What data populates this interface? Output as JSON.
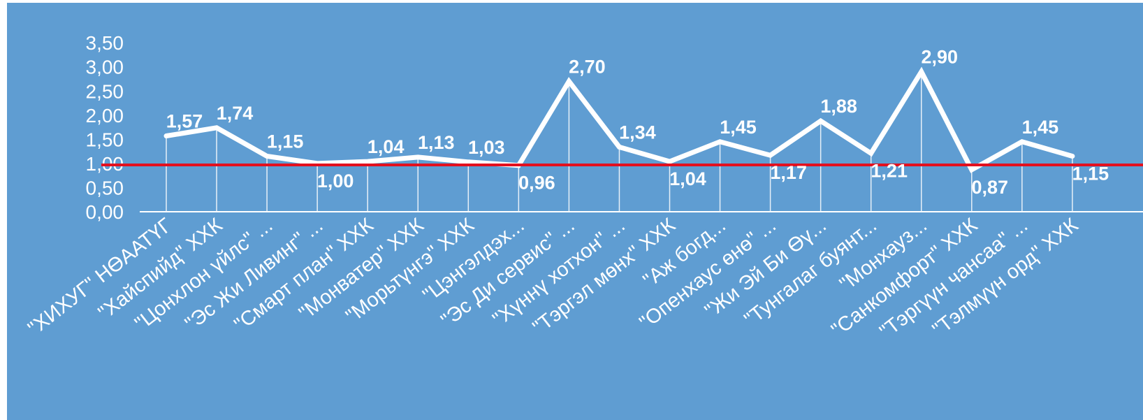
{
  "colors": {
    "plot_background": "#5f9dd2",
    "series_line": "#ffffff",
    "reference_line": "#e3101e",
    "axis_line": "#ffffff",
    "text": "#ffffff"
  },
  "chart_data": {
    "type": "line",
    "title": "",
    "xlabel": "",
    "ylabel": "",
    "ylim": [
      0,
      3.5
    ],
    "y_ticks": [
      "0,00",
      "0,50",
      "1,00",
      "1,50",
      "2,00",
      "2,50",
      "3,00",
      "3,50"
    ],
    "grid": false,
    "legend": "none",
    "reference_line": 0.97,
    "categories": [
      "\"ХИХУГ\" НӨААТҮГ",
      "\"Хайспийд\" ХХК",
      "\"Цонхлон үйлс\" ...",
      "\"Эс Жи Ливинг\" ...",
      "\"Смарт план\" ХХК",
      "\"Монватер\" ХХК",
      "\"Морьтүнгэ\" ХХК",
      "\"Цэнгэлдэх...",
      "\"Эс Ди сервис\" ...",
      "\"Хүннү хотхон\" ...",
      "\"Тэргэл мөнх\" ХХК",
      "\"Аж богд...",
      "\"Опенхаус өнө\" ...",
      "\"Жи Эй Би Өү...",
      "\"Тунгалаг буянт...",
      "\"Монхауз...",
      "\"Санкомфорт\" ХХК",
      "\"Тэргүүн чансаа\" ...",
      "\"Тэлмүүн орд\" ХХК"
    ],
    "series": [
      {
        "values": [
          1.57,
          1.74,
          1.15,
          1.0,
          1.04,
          1.13,
          1.03,
          0.96,
          2.7,
          1.34,
          1.04,
          1.45,
          1.17,
          1.88,
          1.21,
          2.9,
          0.87,
          1.45,
          1.15
        ],
        "labels": [
          "1,57",
          "1,74",
          "1,15",
          "1,00",
          "1,04",
          "1,13",
          "1,03",
          "0,96",
          "2,70",
          "1,34",
          "1,04",
          "1,45",
          "1,17",
          "1,88",
          "1,21",
          "2,90",
          "0,87",
          "1,45",
          "1,15"
        ]
      }
    ]
  }
}
